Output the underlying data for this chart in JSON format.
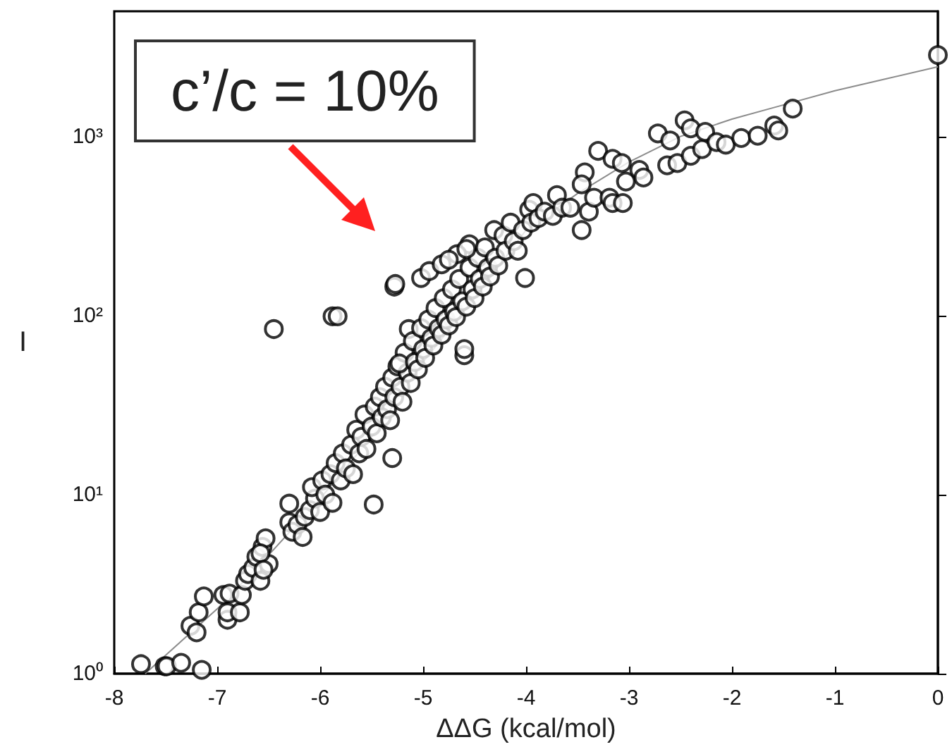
{
  "chart_data": {
    "type": "scatter",
    "xlabel": "ΔΔG (kcal/mol)",
    "ylabel": "I",
    "log": "y",
    "xlim": [
      -8,
      0
    ],
    "xticks": [
      -8,
      -7,
      -6,
      -5,
      -4,
      -3,
      -2,
      -1,
      0
    ],
    "ylim": [
      1,
      5000
    ],
    "yticks": [
      {
        "value": 1,
        "label": "10⁰"
      },
      {
        "value": 10,
        "label": "10¹"
      },
      {
        "value": 100,
        "label": "10²"
      },
      {
        "value": 1000,
        "label": "10³"
      }
    ],
    "grid": false,
    "annotations": [
      "c’/c = 10%"
    ],
    "series": [
      {
        "color": "#000000",
        "marker": "circle",
        "x": [
          -7.74,
          -7.51,
          -7.49,
          -7.35,
          -7.15,
          -7.26,
          -7.2,
          -7.18,
          -7.13,
          -6.94,
          -6.9,
          -6.9,
          -6.88,
          -6.78,
          -6.76,
          -6.73,
          -6.7,
          -6.65,
          -6.62,
          -6.58,
          -6.56,
          -6.53,
          -6.5,
          -6.58,
          -6.55,
          -6.3,
          -6.3,
          -6.27,
          -6.22,
          -6.17,
          -6.15,
          -6.1,
          -6.05,
          -6.08,
          -6.0,
          -5.98,
          -5.95,
          -5.9,
          -5.88,
          -5.85,
          -5.8,
          -5.78,
          -5.75,
          -5.7,
          -5.68,
          -5.65,
          -5.62,
          -5.6,
          -5.57,
          -5.55,
          -5.5,
          -5.48,
          -5.47,
          -5.45,
          -5.42,
          -5.4,
          -5.37,
          -5.35,
          -5.32,
          -5.3,
          -5.3,
          -5.28,
          -5.25,
          -5.22,
          -5.2,
          -5.18,
          -5.15,
          -5.12,
          -5.14,
          -5.23,
          -5.1,
          -5.08,
          -5.05,
          -5.02,
          -5.0,
          -4.98,
          -4.95,
          -4.92,
          -4.9,
          -4.88,
          -4.85,
          -4.82,
          -4.8,
          -4.78,
          -4.75,
          -4.72,
          -4.7,
          -4.68,
          -4.65,
          -4.62,
          -4.6,
          -4.6,
          -4.58,
          -4.55,
          -4.55,
          -4.52,
          -4.5,
          -4.47,
          -4.45,
          -4.42,
          -4.4,
          -4.37,
          -4.35,
          -4.31,
          -4.3,
          -4.27,
          -4.22,
          -4.2,
          -4.15,
          -4.12,
          -4.08,
          -4.01,
          -4.03,
          -3.97,
          -3.95,
          -3.93,
          -3.88,
          -3.82,
          -3.74,
          -3.7,
          -3.65,
          -3.57,
          -3.46,
          -3.43,
          -3.46,
          -3.39,
          -3.34,
          -3.3,
          -3.19,
          -3.16,
          -3.16,
          -3.07,
          -3.06,
          -3.03,
          -2.9,
          -2.86,
          -5.28,
          -5.27,
          -5.02,
          -4.94,
          -4.82,
          -4.67,
          -4.58,
          -4.75,
          -6.45,
          -5.88,
          -5.83,
          -2.72,
          -2.63,
          -2.6,
          -2.53,
          -2.46,
          -2.4,
          -2.4,
          -2.29,
          -2.26,
          -2.15,
          -2.06,
          -1.91,
          -1.75,
          -1.59,
          -1.55,
          -1.41,
          0
        ],
        "values": [
          1.13,
          1.1,
          1.1,
          1.15,
          1.05,
          1.85,
          1.7,
          2.2,
          2.7,
          2.75,
          2.0,
          2.2,
          2.8,
          2.2,
          2.75,
          3.3,
          3.6,
          3.9,
          4.5,
          3.3,
          5.1,
          5.7,
          4.1,
          4.7,
          3.8,
          8.9,
          7,
          6.2,
          6.8,
          5.8,
          7.5,
          8.2,
          9.5,
          11,
          8,
          12,
          10,
          13,
          9,
          15,
          12,
          17,
          14,
          19,
          13,
          23,
          17,
          21,
          28,
          18,
          24,
          8.8,
          31,
          22,
          35,
          27,
          40,
          30,
          26,
          16,
          45,
          35,
          52,
          40,
          33,
          62,
          48,
          42,
          84,
          54,
          72,
          55,
          50,
          85,
          65,
          58,
          95,
          75,
          68,
          110,
          85,
          78,
          125,
          95,
          88,
          140,
          105,
          98,
          160,
          120,
          60,
          65,
          112,
          185,
          250,
          140,
          125,
          210,
          160,
          145,
          240,
          185,
          165,
          300,
          210,
          190,
          280,
          230,
          330,
          260,
          230,
          162,
          300,
          390,
          330,
          425,
          350,
          380,
          360,
          470,
          400,
          400,
          300,
          630,
          540,
          380,
          455,
          830,
          455,
          425,
          750,
          710,
          425,
          560,
          650,
          590,
          145,
          150,
          162,
          177,
          193,
          220,
          235,
          205,
          84,
          99,
          99,
          1040,
          690,
          950,
          710,
          1230,
          1110,
          780,
          850,
          1060,
          930,
          900,
          980,
          1010,
          1150,
          1080,
          1430,
          2850
        ]
      },
      {
        "type": "line",
        "color": "#8c8c8c",
        "marker": "none",
        "x": [
          -7.7,
          -7,
          -6.5,
          -6,
          -5.5,
          -5,
          -4.5,
          -4,
          -3.5,
          -3,
          -2.5,
          -2,
          -1.5,
          -1,
          -0.5,
          0
        ],
        "values": [
          1,
          2.3,
          4.6,
          9.5,
          21,
          55,
          125,
          300,
          480,
          720,
          1000,
          1250,
          1500,
          1800,
          2100,
          2450
        ]
      }
    ]
  }
}
